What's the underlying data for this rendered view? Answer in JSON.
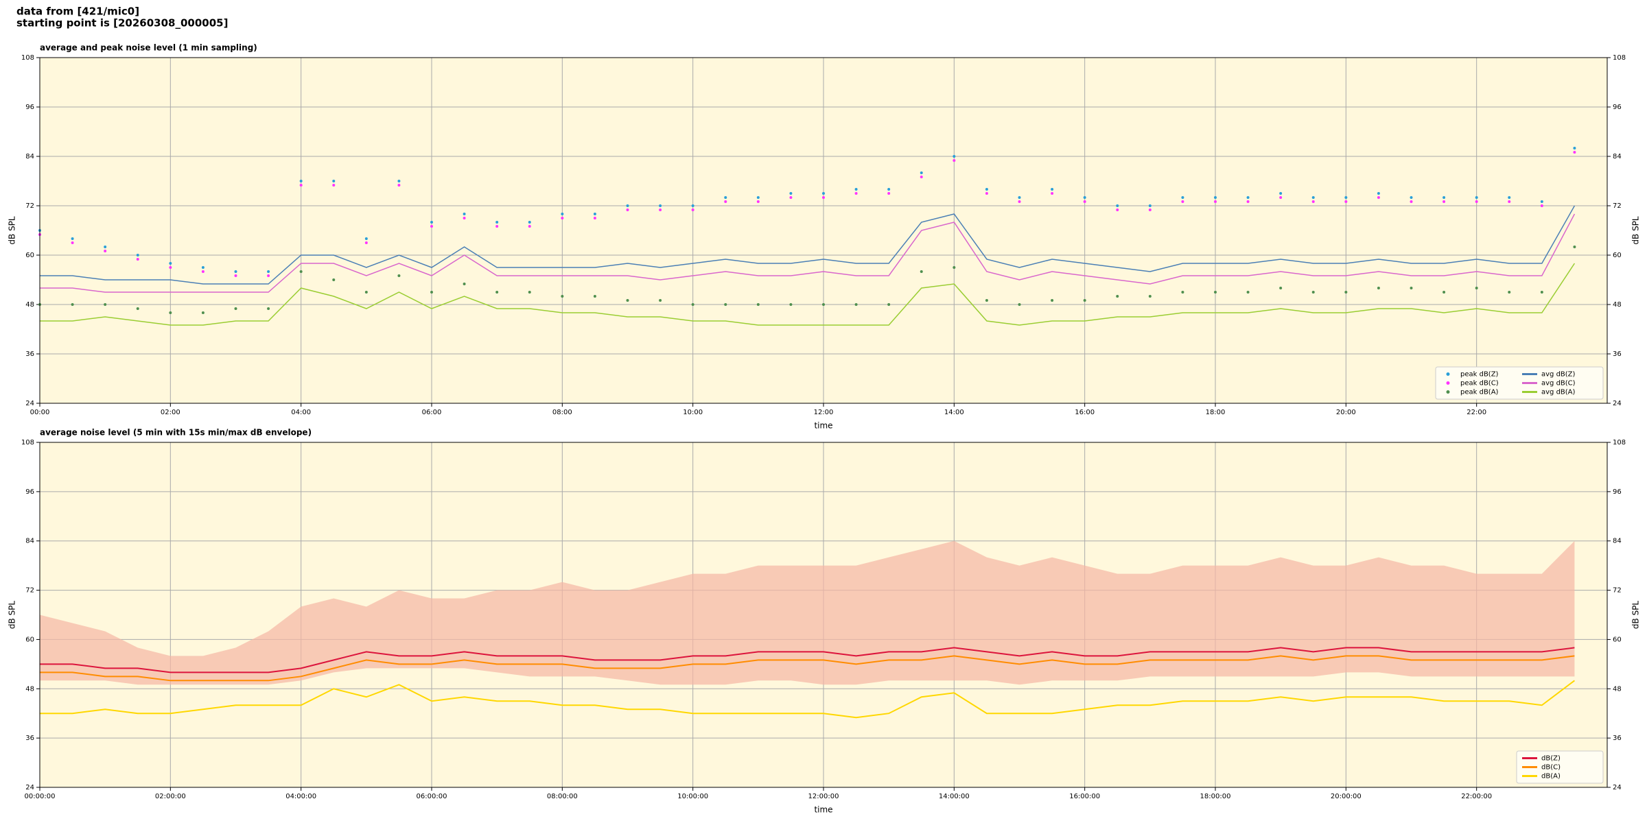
{
  "header": [
    "data from [421/mic0]",
    "starting point is [20260308_000005]"
  ],
  "chart_data": [
    {
      "type": "line",
      "title": "average and peak noise level (1 min sampling)",
      "xlabel": "time",
      "ylabel": "dB SPL",
      "xlim": [
        0,
        24
      ],
      "ylim": [
        24,
        108
      ],
      "yticks": [
        24,
        36,
        48,
        60,
        72,
        84,
        96,
        108
      ],
      "xticks": [
        {
          "value": 0,
          "label": "00:00"
        },
        {
          "value": 2,
          "label": "02:00"
        },
        {
          "value": 4,
          "label": "04:00"
        },
        {
          "value": 6,
          "label": "06:00"
        },
        {
          "value": 8,
          "label": "08:00"
        },
        {
          "value": 10,
          "label": "10:00"
        },
        {
          "value": 12,
          "label": "12:00"
        },
        {
          "value": 14,
          "label": "14:00"
        },
        {
          "value": 16,
          "label": "16:00"
        },
        {
          "value": 18,
          "label": "18:00"
        },
        {
          "value": 20,
          "label": "20:00"
        },
        {
          "value": 22,
          "label": "22:00"
        }
      ],
      "grid": true,
      "legend": "lower right",
      "x": [
        0,
        0.5,
        1,
        1.5,
        2,
        2.5,
        3,
        3.5,
        4,
        4.5,
        5,
        5.5,
        6,
        6.5,
        7,
        7.5,
        8,
        8.5,
        9,
        9.5,
        10,
        10.5,
        11,
        11.5,
        12,
        12.5,
        13,
        13.5,
        14,
        14.5,
        15,
        15.5,
        16,
        16.5,
        17,
        17.5,
        18,
        18.5,
        19,
        19.5,
        20,
        20.5,
        21,
        21.5,
        22,
        22.5,
        23,
        23.5
      ],
      "series": [
        {
          "name": "peak dB(Z)",
          "style": "dots",
          "color": "#2a9fd8",
          "values": [
            66,
            64,
            62,
            60,
            58,
            57,
            56,
            56,
            78,
            78,
            64,
            78,
            68,
            70,
            68,
            68,
            70,
            70,
            72,
            72,
            72,
            74,
            74,
            75,
            75,
            76,
            76,
            80,
            84,
            76,
            74,
            76,
            74,
            72,
            72,
            74,
            74,
            74,
            75,
            74,
            74,
            75,
            74,
            74,
            74,
            74,
            73,
            86
          ]
        },
        {
          "name": "peak dB(C)",
          "style": "dots",
          "color": "#ff33ff",
          "values": [
            65,
            63,
            61,
            59,
            57,
            56,
            55,
            55,
            77,
            77,
            63,
            77,
            67,
            69,
            67,
            67,
            69,
            69,
            71,
            71,
            71,
            73,
            73,
            74,
            74,
            75,
            75,
            79,
            83,
            75,
            73,
            75,
            73,
            71,
            71,
            73,
            73,
            73,
            74,
            73,
            73,
            74,
            73,
            73,
            73,
            73,
            72,
            85
          ]
        },
        {
          "name": "peak dB(A)",
          "style": "dots",
          "color": "#4f8f4f",
          "values": [
            48,
            48,
            48,
            47,
            46,
            46,
            47,
            47,
            56,
            54,
            51,
            55,
            51,
            53,
            51,
            51,
            50,
            50,
            49,
            49,
            48,
            48,
            48,
            48,
            48,
            48,
            48,
            56,
            57,
            49,
            48,
            49,
            49,
            50,
            50,
            51,
            51,
            51,
            52,
            51,
            51,
            52,
            52,
            51,
            52,
            51,
            51,
            62
          ]
        },
        {
          "name": "avg dB(Z)",
          "style": "line",
          "color": "#4a7fb5",
          "values": [
            55,
            55,
            54,
            54,
            54,
            53,
            53,
            53,
            60,
            60,
            57,
            60,
            57,
            62,
            57,
            57,
            57,
            57,
            58,
            57,
            58,
            59,
            58,
            58,
            59,
            58,
            58,
            68,
            70,
            59,
            57,
            59,
            58,
            57,
            56,
            58,
            58,
            58,
            59,
            58,
            58,
            59,
            58,
            58,
            59,
            58,
            58,
            72
          ]
        },
        {
          "name": "avg dB(C)",
          "style": "line",
          "color": "#d966cc",
          "values": [
            52,
            52,
            51,
            51,
            51,
            51,
            51,
            51,
            58,
            58,
            55,
            58,
            55,
            60,
            55,
            55,
            55,
            55,
            55,
            54,
            55,
            56,
            55,
            55,
            56,
            55,
            55,
            66,
            68,
            56,
            54,
            56,
            55,
            54,
            53,
            55,
            55,
            55,
            56,
            55,
            55,
            56,
            55,
            55,
            56,
            55,
            55,
            70
          ]
        },
        {
          "name": "avg dB(A)",
          "style": "line",
          "color": "#9acd32",
          "values": [
            44,
            44,
            45,
            44,
            43,
            43,
            44,
            44,
            52,
            50,
            47,
            51,
            47,
            50,
            47,
            47,
            46,
            46,
            45,
            45,
            44,
            44,
            43,
            43,
            43,
            43,
            43,
            52,
            53,
            44,
            43,
            44,
            44,
            45,
            45,
            46,
            46,
            46,
            47,
            46,
            46,
            47,
            47,
            46,
            47,
            46,
            46,
            58
          ]
        }
      ]
    },
    {
      "type": "line",
      "title": "average noise level (5 min with 15s min/max dB envelope)",
      "xlabel": "time",
      "ylabel": "dB SPL",
      "xlim": [
        0,
        24
      ],
      "ylim": [
        24,
        108
      ],
      "yticks": [
        24,
        36,
        48,
        60,
        72,
        84,
        96,
        108
      ],
      "xticks": [
        {
          "value": 0,
          "label": "00:00:00"
        },
        {
          "value": 2,
          "label": "02:00:00"
        },
        {
          "value": 4,
          "label": "04:00:00"
        },
        {
          "value": 6,
          "label": "06:00:00"
        },
        {
          "value": 8,
          "label": "08:00:00"
        },
        {
          "value": 10,
          "label": "10:00:00"
        },
        {
          "value": 12,
          "label": "12:00:00"
        },
        {
          "value": 14,
          "label": "14:00:00"
        },
        {
          "value": 16,
          "label": "16:00:00"
        },
        {
          "value": 18,
          "label": "18:00:00"
        },
        {
          "value": 20,
          "label": "20:00:00"
        },
        {
          "value": 22,
          "label": "22:00:00"
        }
      ],
      "grid": true,
      "legend": "lower right",
      "x": [
        0,
        0.5,
        1,
        1.5,
        2,
        2.5,
        3,
        3.5,
        4,
        4.5,
        5,
        5.5,
        6,
        6.5,
        7,
        7.5,
        8,
        8.5,
        9,
        9.5,
        10,
        10.5,
        11,
        11.5,
        12,
        12.5,
        13,
        13.5,
        14,
        14.5,
        15,
        15.5,
        16,
        16.5,
        17,
        17.5,
        18,
        18.5,
        19,
        19.5,
        20,
        20.5,
        21,
        21.5,
        22,
        22.5,
        23,
        23.5
      ],
      "envelope": {
        "color": "#f5b7a4",
        "lower": [
          50,
          50,
          50,
          49,
          49,
          49,
          49,
          49,
          50,
          52,
          53,
          53,
          53,
          53,
          52,
          51,
          51,
          51,
          50,
          49,
          49,
          49,
          50,
          50,
          49,
          49,
          50,
          50,
          50,
          50,
          49,
          50,
          50,
          50,
          51,
          51,
          51,
          51,
          51,
          51,
          52,
          52,
          51,
          51,
          51,
          51,
          51,
          51
        ],
        "upper": [
          66,
          64,
          62,
          58,
          56,
          56,
          58,
          62,
          68,
          70,
          68,
          72,
          70,
          70,
          72,
          72,
          74,
          72,
          72,
          74,
          76,
          76,
          78,
          78,
          78,
          78,
          80,
          82,
          84,
          80,
          78,
          80,
          78,
          76,
          76,
          78,
          78,
          78,
          80,
          78,
          78,
          80,
          78,
          78,
          76,
          76,
          76,
          84
        ]
      },
      "series": [
        {
          "name": "dB(Z)",
          "style": "line",
          "color": "#dc143c",
          "values": [
            54,
            54,
            53,
            53,
            52,
            52,
            52,
            52,
            53,
            55,
            57,
            56,
            56,
            57,
            56,
            56,
            56,
            55,
            55,
            55,
            56,
            56,
            57,
            57,
            57,
            56,
            57,
            57,
            58,
            57,
            56,
            57,
            56,
            56,
            57,
            57,
            57,
            57,
            58,
            57,
            58,
            58,
            57,
            57,
            57,
            57,
            57,
            58
          ]
        },
        {
          "name": "dB(C)",
          "style": "line",
          "color": "#ff8c00",
          "values": [
            52,
            52,
            51,
            51,
            50,
            50,
            50,
            50,
            51,
            53,
            55,
            54,
            54,
            55,
            54,
            54,
            54,
            53,
            53,
            53,
            54,
            54,
            55,
            55,
            55,
            54,
            55,
            55,
            56,
            55,
            54,
            55,
            54,
            54,
            55,
            55,
            55,
            55,
            56,
            55,
            56,
            56,
            55,
            55,
            55,
            55,
            55,
            56
          ]
        },
        {
          "name": "dB(A)",
          "style": "line",
          "color": "#ffd700",
          "values": [
            42,
            42,
            43,
            42,
            42,
            43,
            44,
            44,
            44,
            48,
            46,
            49,
            45,
            46,
            45,
            45,
            44,
            44,
            43,
            43,
            42,
            42,
            42,
            42,
            42,
            41,
            42,
            46,
            47,
            42,
            42,
            42,
            43,
            44,
            44,
            45,
            45,
            45,
            46,
            45,
            46,
            46,
            46,
            45,
            45,
            45,
            44,
            50
          ]
        }
      ]
    }
  ]
}
